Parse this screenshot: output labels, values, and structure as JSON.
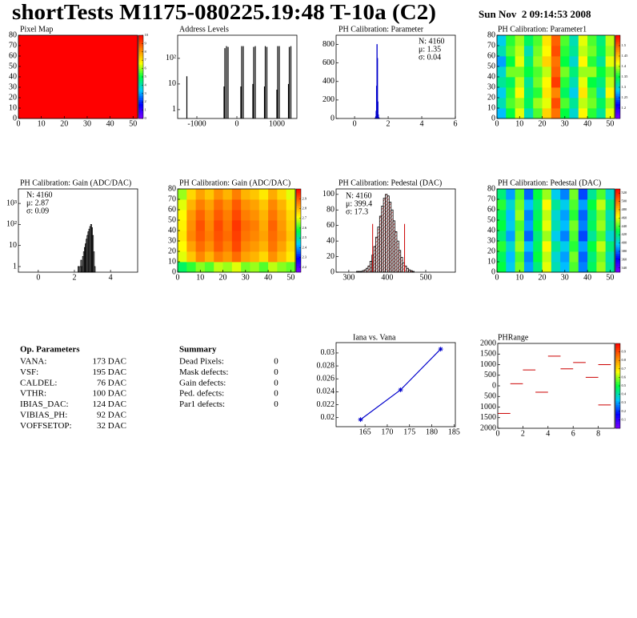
{
  "header": {
    "title": "shortTests M1175-080225.19:48 T-10a (C2)",
    "date": "Sun Nov  2 09:14:53 2008"
  },
  "chart_data": [
    {
      "type": "heatmap",
      "title": "Pixel Map",
      "xlim": [
        0,
        52
      ],
      "ylim": [
        0,
        80
      ],
      "xticks": [
        0,
        10,
        20,
        30,
        40,
        50
      ],
      "yticks": [
        0,
        10,
        20,
        30,
        40,
        50,
        60,
        70,
        80
      ],
      "values": [
        [
          10
        ]
      ],
      "zlim": [
        0,
        10
      ],
      "zticks": [
        0,
        1,
        2,
        3,
        4,
        5,
        6,
        7,
        8,
        9,
        10
      ],
      "palette": [
        "#8000ff",
        "#0000ff",
        "#00c8ff",
        "#00ff40",
        "#ffff00",
        "#ff8000",
        "#ff0000"
      ]
    },
    {
      "type": "spikes",
      "title": "Address Levels",
      "log_y": true,
      "xlim": [
        -1480,
        1500
      ],
      "ylim": [
        0.45,
        800
      ],
      "xticks": [
        -1000,
        0,
        1000
      ],
      "yticks": [
        1,
        10,
        {
          "value": 100,
          "label": "10²"
        }
      ],
      "color": "#000000",
      "x": [
        -1250,
        -320,
        -300,
        -260,
        -220,
        100,
        120,
        160,
        400,
        420,
        460,
        690,
        710,
        750,
        1000,
        1020,
        1060,
        1290,
        1310,
        1350
      ],
      "values": [
        20,
        8,
        250,
        300,
        280,
        8,
        300,
        300,
        10,
        280,
        300,
        8,
        300,
        280,
        6,
        300,
        300,
        10,
        280,
        300
      ]
    },
    {
      "type": "histogram",
      "title": "PH Calibration: Parameter",
      "xlim": [
        -1.1,
        6
      ],
      "ylim": [
        0,
        900
      ],
      "xticks": [
        0,
        2,
        4,
        6
      ],
      "yticks": [
        0,
        200,
        400,
        600,
        800
      ],
      "color": "#0000cc",
      "bins": [
        1.2,
        1.225,
        1.25,
        1.275,
        1.3,
        1.325,
        1.35,
        1.375,
        1.4,
        1.425,
        1.45,
        1.475,
        1.5
      ],
      "values": [
        2,
        5,
        20,
        80,
        350,
        800,
        650,
        180,
        40,
        10,
        3,
        1
      ],
      "stats": [
        "N: 4160",
        "μ: 1.35",
        "σ: 0.04"
      ],
      "stats_colors": [
        "#0000cc",
        "#0000cc",
        "#0000cc"
      ]
    },
    {
      "type": "heatmap",
      "title": "PH Calibration: Parameter1",
      "xlim": [
        0,
        52
      ],
      "ylim": [
        0,
        80
      ],
      "xticks": [
        0,
        10,
        20,
        30,
        40,
        50
      ],
      "yticks": [
        0,
        10,
        20,
        30,
        40,
        50,
        60,
        70,
        80
      ],
      "zlim": [
        1.15,
        1.55
      ],
      "zticks": [
        1.2,
        1.25,
        1.3,
        1.35,
        1.4,
        1.45,
        1.5
      ],
      "palette": [
        "#8000ff",
        "#0000ff",
        "#00c8ff",
        "#00ff40",
        "#ffff00",
        "#ff8000",
        "#ff0000"
      ],
      "values": [
        [
          1.28,
          1.35,
          1.41,
          1.31,
          1.37,
          1.44,
          1.49,
          1.35,
          1.3,
          1.42,
          1.36,
          1.32,
          1.41
        ],
        [
          1.31,
          1.37,
          1.39,
          1.34,
          1.39,
          1.41,
          1.51,
          1.37,
          1.32,
          1.4,
          1.38,
          1.34,
          1.39
        ],
        [
          1.29,
          1.36,
          1.42,
          1.33,
          1.36,
          1.43,
          1.48,
          1.34,
          1.29,
          1.43,
          1.37,
          1.31,
          1.42
        ],
        [
          1.32,
          1.34,
          1.4,
          1.32,
          1.38,
          1.42,
          1.52,
          1.36,
          1.31,
          1.41,
          1.35,
          1.33,
          1.4
        ],
        [
          1.3,
          1.38,
          1.38,
          1.35,
          1.37,
          1.4,
          1.5,
          1.38,
          1.33,
          1.39,
          1.39,
          1.35,
          1.38
        ],
        [
          1.27,
          1.35,
          1.41,
          1.33,
          1.39,
          1.44,
          1.49,
          1.35,
          1.3,
          1.42,
          1.36,
          1.32,
          1.41
        ],
        [
          1.31,
          1.37,
          1.4,
          1.31,
          1.38,
          1.42,
          1.51,
          1.36,
          1.32,
          1.4,
          1.38,
          1.34,
          1.39
        ],
        [
          1.29,
          1.36,
          1.39,
          1.34,
          1.37,
          1.43,
          1.5,
          1.37,
          1.31,
          1.41,
          1.37,
          1.33,
          1.4
        ]
      ]
    },
    {
      "type": "histogram",
      "title": "PH Calibration: Gain (ADC/DAC)",
      "log_y": true,
      "xlim": [
        -1.1,
        5.5
      ],
      "ylim": [
        0.54,
        4900
      ],
      "xticks": [
        0,
        2,
        4
      ],
      "yticks": [
        1,
        10,
        {
          "value": 100,
          "label": "10²"
        },
        {
          "value": 1000,
          "label": "10³"
        }
      ],
      "color": "#000000",
      "bins": [
        2.2,
        2.25,
        2.3,
        2.35,
        2.4,
        2.45,
        2.5,
        2.55,
        2.6,
        2.65,
        2.7,
        2.75,
        2.8,
        2.85,
        2.9,
        2.95,
        3.0,
        3.05,
        3.1,
        3.15
      ],
      "values": [
        1,
        0,
        1,
        2,
        1,
        3,
        5,
        8,
        12,
        20,
        30,
        45,
        60,
        80,
        100,
        70,
        30,
        5,
        1
      ],
      "stats": [
        "N: 4160",
        "μ: 2.87",
        "σ: 0.09"
      ],
      "stats_colors": [
        "#000000",
        "#000000",
        "#000000"
      ]
    },
    {
      "type": "heatmap",
      "title": "PH Calibration: Gain (ADC/DAC)",
      "xlim": [
        0,
        52
      ],
      "ylim": [
        0,
        80
      ],
      "xticks": [
        0,
        10,
        20,
        30,
        40,
        50
      ],
      "yticks": [
        0,
        10,
        20,
        30,
        40,
        50,
        60,
        70,
        80
      ],
      "zlim": [
        2.15,
        3.0
      ],
      "zticks": [
        2.2,
        2.3,
        2.4,
        2.5,
        2.6,
        2.7,
        2.8,
        2.9
      ],
      "palette": [
        "#8000ff",
        "#0000ff",
        "#00c8ff",
        "#00ff40",
        "#ffff00",
        "#ff8000",
        "#ff0000"
      ],
      "values": [
        [
          2.55,
          2.6,
          2.65,
          2.62,
          2.68,
          2.66,
          2.7,
          2.64,
          2.66,
          2.62,
          2.68,
          2.65,
          2.63
        ],
        [
          2.7,
          2.78,
          2.85,
          2.8,
          2.86,
          2.83,
          2.88,
          2.82,
          2.8,
          2.76,
          2.84,
          2.79,
          2.74
        ],
        [
          2.72,
          2.82,
          2.88,
          2.84,
          2.9,
          2.86,
          2.92,
          2.85,
          2.83,
          2.8,
          2.87,
          2.82,
          2.76
        ],
        [
          2.74,
          2.85,
          2.9,
          2.86,
          2.91,
          2.88,
          2.93,
          2.87,
          2.85,
          2.82,
          2.88,
          2.84,
          2.78
        ],
        [
          2.73,
          2.84,
          2.91,
          2.85,
          2.92,
          2.87,
          2.94,
          2.88,
          2.86,
          2.81,
          2.89,
          2.83,
          2.77
        ],
        [
          2.72,
          2.83,
          2.89,
          2.84,
          2.9,
          2.86,
          2.92,
          2.86,
          2.84,
          2.8,
          2.87,
          2.82,
          2.76
        ],
        [
          2.7,
          2.8,
          2.86,
          2.82,
          2.88,
          2.84,
          2.9,
          2.84,
          2.82,
          2.78,
          2.85,
          2.8,
          2.74
        ],
        [
          2.66,
          2.76,
          2.82,
          2.78,
          2.84,
          2.8,
          2.86,
          2.8,
          2.78,
          2.74,
          2.81,
          2.76,
          2.7
        ]
      ]
    },
    {
      "type": "histogram",
      "title": "PH Calibration: Pedestal (DAC)",
      "xlim": [
        267,
        577
      ],
      "ylim": [
        0,
        107
      ],
      "xticks": [
        300,
        400,
        500
      ],
      "yticks": [
        0,
        20,
        40,
        60,
        80,
        100
      ],
      "color": "#000000",
      "fill_pattern": "hatched",
      "fill_color": "#cc0000",
      "bins": [
        320,
        325,
        330,
        335,
        340,
        345,
        350,
        355,
        360,
        365,
        370,
        375,
        380,
        385,
        390,
        395,
        400,
        405,
        410,
        415,
        420,
        425,
        430,
        435,
        440,
        445,
        450,
        455,
        460,
        465,
        470
      ],
      "values": [
        1,
        1,
        1,
        2,
        3,
        5,
        8,
        14,
        22,
        33,
        45,
        58,
        72,
        85,
        95,
        100,
        98,
        90,
        80,
        66,
        52,
        40,
        28,
        19,
        12,
        8,
        5,
        3,
        2,
        1
      ],
      "cut_lines": {
        "color": "#cc0000",
        "x": [
          362,
          445
        ],
        "values": [
          62,
          62
        ]
      },
      "stats": [
        "N: 4160",
        "μ: 399.4",
        "σ: 17.3"
      ],
      "stats_colors": [
        "#000000",
        "#ff0000",
        "#ff0000"
      ]
    },
    {
      "type": "heatmap",
      "title": "PH Calibration: Pedestal (DAC)",
      "xlim": [
        0,
        52
      ],
      "ylim": [
        0,
        80
      ],
      "xticks": [
        0,
        10,
        20,
        30,
        40,
        50
      ],
      "yticks": [
        0,
        10,
        20,
        30,
        40,
        50,
        60,
        70,
        80
      ],
      "zlim": [
        330,
        530
      ],
      "zticks": [
        340,
        360,
        380,
        400,
        420,
        440,
        460,
        480,
        500,
        520
      ],
      "palette": [
        "#8000ff",
        "#0000ff",
        "#00c8ff",
        "#00ff40",
        "#ffff00",
        "#ff8000",
        "#ff0000"
      ],
      "values": [
        [
          430,
          400,
          445,
          390,
          420,
          460,
          410,
          395,
          440,
          385,
          425,
          450,
          415
        ],
        [
          425,
          395,
          440,
          385,
          430,
          455,
          405,
          390,
          445,
          380,
          420,
          445,
          410
        ],
        [
          435,
          405,
          450,
          395,
          425,
          465,
          415,
          400,
          435,
          390,
          430,
          455,
          420
        ],
        [
          420,
          390,
          445,
          380,
          420,
          450,
          400,
          385,
          440,
          375,
          415,
          440,
          405
        ],
        [
          430,
          400,
          440,
          390,
          430,
          460,
          410,
          395,
          445,
          385,
          425,
          450,
          415
        ],
        [
          425,
          395,
          450,
          385,
          425,
          455,
          405,
          390,
          435,
          380,
          420,
          445,
          410
        ],
        [
          435,
          405,
          445,
          395,
          420,
          465,
          415,
          400,
          440,
          390,
          430,
          455,
          420
        ],
        [
          420,
          390,
          440,
          380,
          430,
          450,
          400,
          385,
          445,
          375,
          415,
          440,
          405
        ]
      ]
    },
    {
      "type": "line",
      "title": "Iana vs. Vana",
      "xlim": [
        158.5,
        185.3
      ],
      "ylim": [
        0.0186,
        0.0316
      ],
      "xticks": [
        165,
        170,
        175,
        180,
        185
      ],
      "yticks": [
        0.02,
        0.022,
        0.024,
        0.026,
        0.028,
        0.03
      ],
      "color": "#0000cc",
      "x": [
        164,
        173,
        182
      ],
      "values": [
        0.0197,
        0.0243,
        0.0306
      ]
    },
    {
      "type": "segments",
      "title": "PHRange",
      "xlim": [
        0,
        9.3
      ],
      "ylim": [
        -2000,
        2000
      ],
      "xticks": [
        0,
        2,
        4,
        6,
        8
      ],
      "yticks": [
        {
          "value": -2000,
          "label": "2000"
        },
        {
          "value": -1500,
          "label": "1500"
        },
        {
          "value": -1000,
          "label": "1000"
        },
        {
          "value": -500,
          "label": "500"
        },
        0,
        500,
        1000,
        1500,
        2000
      ],
      "color": "#cc0000",
      "x": [
        0,
        1,
        2,
        3,
        4,
        5,
        6,
        7,
        8,
        8
      ],
      "values": [
        -1300,
        100,
        750,
        -300,
        1400,
        800,
        1100,
        400,
        1000,
        -900
      ],
      "zlim": [
        0,
        1
      ],
      "zticks": [
        0.1,
        0.2,
        0.3,
        0.4,
        0.5,
        0.6,
        0.7,
        0.8,
        0.9
      ],
      "palette": [
        "#8000ff",
        "#0000ff",
        "#00c8ff",
        "#00ff40",
        "#ffff00",
        "#ff8000",
        "#ff0000"
      ]
    }
  ],
  "op_parameters": {
    "title": "Op. Parameters",
    "rows": [
      [
        "VANA:",
        "173 DAC"
      ],
      [
        "VSF:",
        "195 DAC"
      ],
      [
        "CALDEL:",
        "76 DAC"
      ],
      [
        "VTHR:",
        "100 DAC"
      ],
      [
        "IBIAS_DAC:",
        "124 DAC"
      ],
      [
        "VIBIAS_PH:",
        "92 DAC"
      ],
      [
        "VOFFSETOP:",
        "32 DAC"
      ]
    ]
  },
  "summary": {
    "title": "Summary",
    "rows": [
      {
        "label": "Dead Pixels:",
        "value": 0,
        "color": "#000000"
      },
      {
        "label": "Mask defects:",
        "value": 0,
        "color": "#000000"
      },
      {
        "label": "Gain defects:",
        "value": 0,
        "color": "#000000"
      },
      {
        "label": "Ped. defects:",
        "value": 0,
        "color": "#ff0000"
      },
      {
        "label": "Par1 defects:",
        "value": 0,
        "color": "#0000cc"
      }
    ]
  }
}
